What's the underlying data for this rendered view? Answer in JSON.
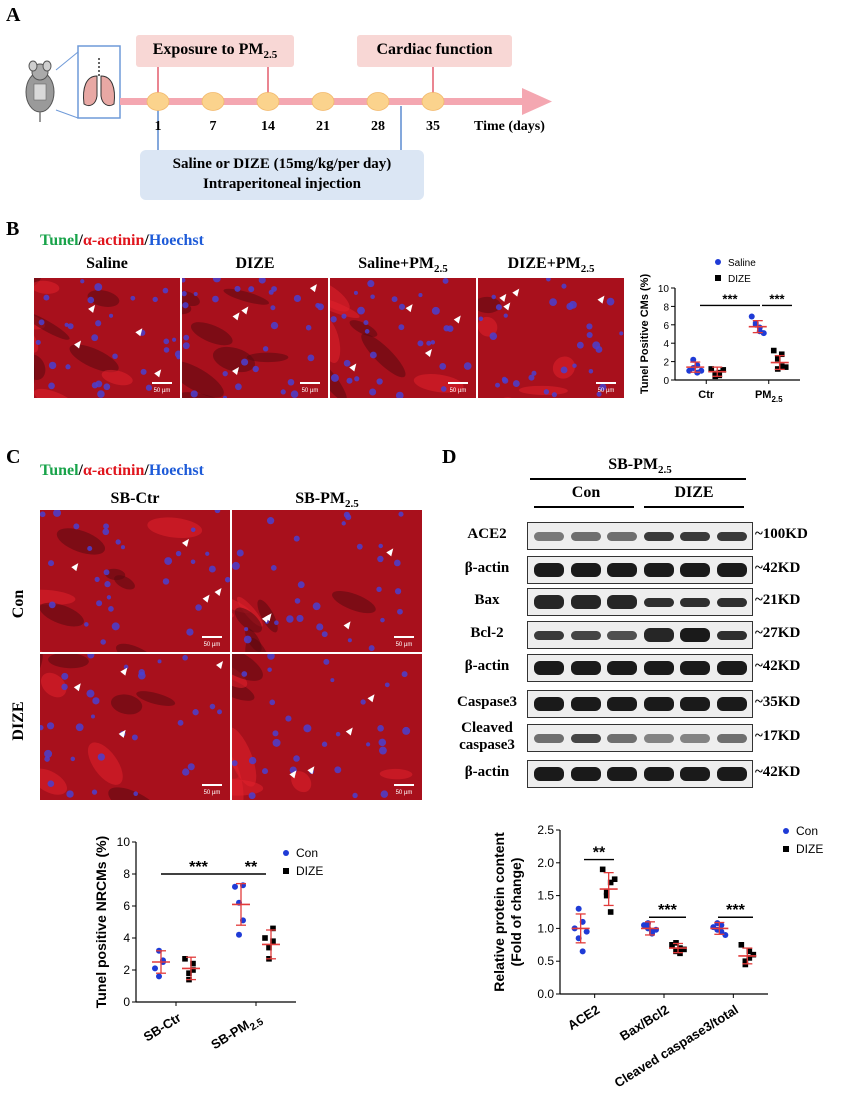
{
  "panel_labels": {
    "a": "A",
    "b": "B",
    "c": "C",
    "d": "D"
  },
  "panel_a": {
    "exposure_label": "Exposure to PM",
    "exposure_sub": "2.5",
    "cardiac_label": "Cardiac function",
    "days": [
      "1",
      "7",
      "14",
      "21",
      "28",
      "35"
    ],
    "time_label": "Time (days)",
    "injection_line1": "Saline or DIZE (15mg/kg/per day)",
    "injection_line2": "Intraperitoneal injection"
  },
  "panel_b": {
    "stain_tunel": "Tunel",
    "stain_actinin": "α-actinin",
    "stain_hoechst": "Hoechst",
    "sep": "/",
    "columns": [
      {
        "label": "Saline",
        "sub": ""
      },
      {
        "label": "DIZE",
        "sub": ""
      },
      {
        "label": "Saline+PM",
        "sub": "2.5"
      },
      {
        "label": "DIZE+PM",
        "sub": "2.5"
      }
    ],
    "scale_bar": "50 µm"
  },
  "panel_c": {
    "stain_tunel": "Tunel",
    "stain_actinin": "α-actinin",
    "stain_hoechst": "Hoechst",
    "sep": "/",
    "col_ctr": "SB-Ctr",
    "col_pm": "SB-PM",
    "col_pm_sub": "2.5",
    "row_con": "Con",
    "row_dize": "DIZE",
    "scale_bar": "50 µm"
  },
  "panel_d": {
    "header": "SB-PM",
    "header_sub": "2.5",
    "group_con": "Con",
    "group_dize": "DIZE",
    "rows": [
      {
        "label": "ACE2",
        "kd": "~100KD"
      },
      {
        "label": "β-actin",
        "kd": "~42KD"
      },
      {
        "label": "Bax",
        "kd": "~21KD"
      },
      {
        "label": "Bcl-2",
        "kd": "~27KD"
      },
      {
        "label": "β-actin",
        "kd": "~42KD"
      },
      {
        "label": "Caspase3",
        "kd": "~35KD"
      },
      {
        "label": "Cleaved caspase3",
        "label_line1": "Cleaved",
        "label_line2": "caspase3",
        "kd": "~17KD"
      },
      {
        "label": "β-actin",
        "kd": "~42KD"
      }
    ]
  },
  "chart_data": [
    {
      "type": "scatter",
      "panel": "B",
      "categories": [
        "Ctr",
        "PM2.5"
      ],
      "category_labels": [
        {
          "main": "Ctr",
          "sub": ""
        },
        {
          "main": "PM",
          "sub": "2.5"
        }
      ],
      "ylabel": "Tunel Positive CMs (%)",
      "ylim": [
        0,
        10
      ],
      "yticks": [
        "0",
        "2",
        "4",
        "6",
        "8",
        "10"
      ],
      "legend_placement": "top-right",
      "series": [
        {
          "name": "Saline",
          "color": "#1f3bd6",
          "marker": "circle",
          "points": [
            [
              1.0,
              2.2,
              1.6,
              1.3,
              0.8,
              1.0
            ],
            [
              6.9,
              6.0,
              5.7,
              6.2,
              5.3,
              5.1
            ]
          ],
          "mean": [
            1.4,
            5.8
          ],
          "sd": [
            0.55,
            0.65
          ]
        },
        {
          "name": "DIZE",
          "color": "#000000",
          "marker": "square",
          "points": [
            [
              1.2,
              0.7,
              0.5,
              0.4,
              0.8,
              1.1
            ],
            [
              3.2,
              2.3,
              1.5,
              1.2,
              2.8,
              1.4
            ]
          ],
          "mean": [
            0.9,
            1.9
          ],
          "sd": [
            0.5,
            0.75
          ]
        }
      ],
      "annotations": [
        {
          "text": "***",
          "between": [
            "Saline:Ctr",
            "Saline:PM2.5"
          ]
        },
        {
          "text": "***",
          "between": [
            "Saline:PM2.5",
            "DIZE:PM2.5"
          ]
        }
      ]
    },
    {
      "type": "scatter",
      "panel": "C",
      "categories": [
        "SB-Ctr",
        "SB-PM2.5"
      ],
      "category_labels": [
        {
          "main": "SB-Ctr",
          "sub": ""
        },
        {
          "main": "SB-PM",
          "sub": "2.5"
        }
      ],
      "ylabel": "Tunel positive NRCMs (%)",
      "ylim": [
        0,
        10
      ],
      "yticks": [
        "0",
        "2",
        "4",
        "6",
        "8",
        "10"
      ],
      "legend_placement": "top-right",
      "series": [
        {
          "name": "Con",
          "color": "#1f3bd6",
          "marker": "circle",
          "points": [
            [
              2.1,
              3.2,
              2.6,
              1.6,
              2.5
            ],
            [
              7.2,
              6.2,
              5.1,
              4.2,
              7.3
            ]
          ],
          "mean": [
            2.5,
            6.1
          ],
          "sd": [
            0.7,
            1.3
          ]
        },
        {
          "name": "DIZE",
          "color": "#000000",
          "marker": "square",
          "points": [
            [
              2.7,
              1.4,
              2.0,
              1.8,
              2.4
            ],
            [
              4.0,
              3.4,
              3.8,
              2.7,
              4.6
            ]
          ],
          "mean": [
            2.1,
            3.6
          ],
          "sd": [
            0.7,
            0.9
          ]
        }
      ],
      "annotations": [
        {
          "text": "***",
          "between": [
            "Con:SB-Ctr",
            "Con:SB-PM2.5"
          ]
        },
        {
          "text": "**",
          "between": [
            "Con:SB-PM2.5",
            "DIZE:SB-PM2.5"
          ]
        }
      ]
    },
    {
      "type": "scatter",
      "panel": "D",
      "categories": [
        "ACE2",
        "Bax/Bcl2",
        "Cleaved caspase3/total"
      ],
      "ylabel": "Relative protein content (Fold of change)",
      "ylabel_line1": "Relative protein content",
      "ylabel_line2": "(Fold of change)",
      "ylim": [
        0,
        2.5
      ],
      "yticks": [
        "0.0",
        "0.5",
        "1.0",
        "1.5",
        "2.0",
        "2.5"
      ],
      "legend_placement": "top-right",
      "series": [
        {
          "name": "Con",
          "color": "#1f3bd6",
          "marker": "circle",
          "points": [
            [
              1.0,
              1.3,
              1.1,
              0.85,
              0.65,
              0.95
            ],
            [
              1.05,
              1.0,
              0.95,
              1.08,
              0.92,
              0.98
            ],
            [
              1.02,
              1.08,
              0.95,
              0.98,
              1.05,
              0.9
            ]
          ],
          "mean": [
            1.0,
            1.0,
            1.0
          ],
          "sd": [
            0.22,
            0.1,
            0.09
          ]
        },
        {
          "name": "DIZE",
          "color": "#000000",
          "marker": "square",
          "points": [
            [
              1.9,
              1.5,
              1.7,
              1.55,
              1.25,
              1.75
            ],
            [
              0.75,
              0.65,
              0.7,
              0.78,
              0.62,
              0.68
            ],
            [
              0.75,
              0.5,
              0.55,
              0.45,
              0.65,
              0.6
            ]
          ],
          "mean": [
            1.6,
            0.7,
            0.58
          ],
          "sd": [
            0.25,
            0.07,
            0.12
          ]
        }
      ],
      "annotations": [
        {
          "text": "**",
          "category": "ACE2"
        },
        {
          "text": "***",
          "category": "Bax/Bcl2"
        },
        {
          "text": "***",
          "category": "Cleaved caspase3/total"
        }
      ]
    }
  ]
}
